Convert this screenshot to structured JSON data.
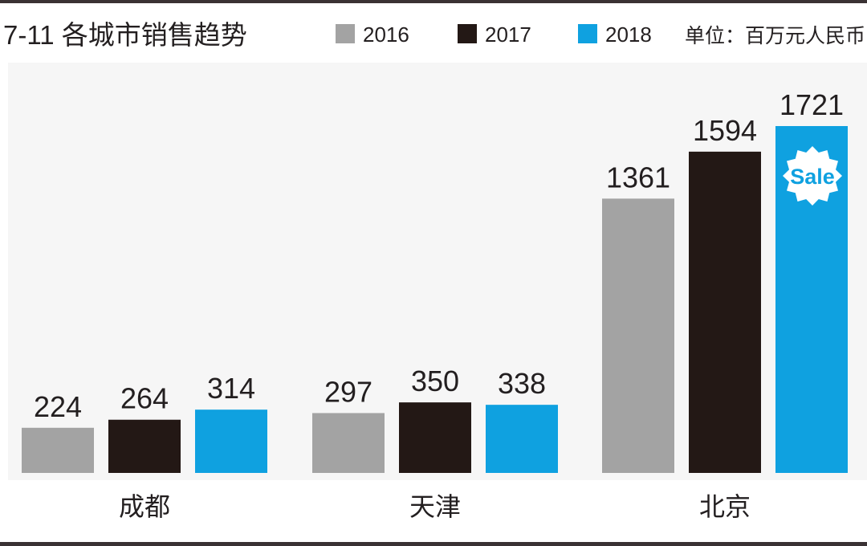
{
  "chart_data": {
    "type": "bar",
    "title": "7-11 各城市销售趋势",
    "unit_note": "单位：百万元人民币",
    "categories": [
      "成都",
      "天津",
      "北京"
    ],
    "series": [
      {
        "name": "2016",
        "color": "#a3a3a3",
        "values": [
          224,
          297,
          1361
        ]
      },
      {
        "name": "2017",
        "color": "#231815",
        "values": [
          264,
          350,
          1594
        ]
      },
      {
        "name": "2018",
        "color": "#0fa1e0",
        "values": [
          314,
          338,
          1721
        ]
      }
    ],
    "ylim": [
      0,
      1721
    ],
    "grid": false,
    "legend_position": "top",
    "data_labels": true,
    "badge": {
      "text": "Sale",
      "icon": "sale-badge-icon"
    }
  }
}
